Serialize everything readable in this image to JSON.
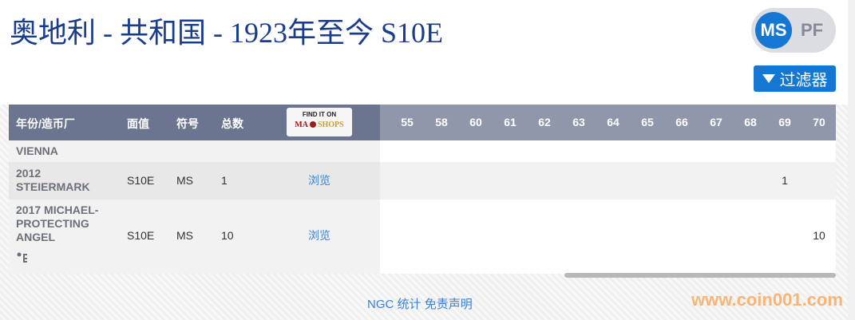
{
  "title": "奥地利 - 共和国 - 1923年至今 S10E",
  "toggle": {
    "ms": "MS",
    "pf": "PF"
  },
  "filter_label": "过滤器",
  "table": {
    "headers": [
      "年份/造币厂",
      "面值",
      "符号",
      "总数"
    ],
    "mashops": {
      "line1": "FIND IT ON",
      "ma": "MA",
      "shops": "SHOPS"
    },
    "grades": [
      "55",
      "58",
      "60",
      "61",
      "62",
      "63",
      "64",
      "65",
      "66",
      "67",
      "68",
      "69",
      "70"
    ],
    "group": "VIENNA",
    "rows": [
      {
        "name": "2012 STEIERMARK",
        "denom": "S10E",
        "symbol": "MS",
        "total": "1",
        "link": "浏览",
        "counts": {
          "69": "1"
        }
      },
      {
        "name": "2017 MICHAEL-PROTECTING ANGEL",
        "denom": "S10E",
        "symbol": "MS",
        "total": "10",
        "link": "浏览",
        "counts": {
          "70": "10"
        }
      }
    ]
  },
  "footer": {
    "stats": "NGC 统计",
    "disclaimer": "免责声明"
  },
  "watermark": "www.coin001.com",
  "colors": {
    "accent": "#1577d1",
    "header": "#6b7590",
    "title": "#1a3c8c"
  }
}
